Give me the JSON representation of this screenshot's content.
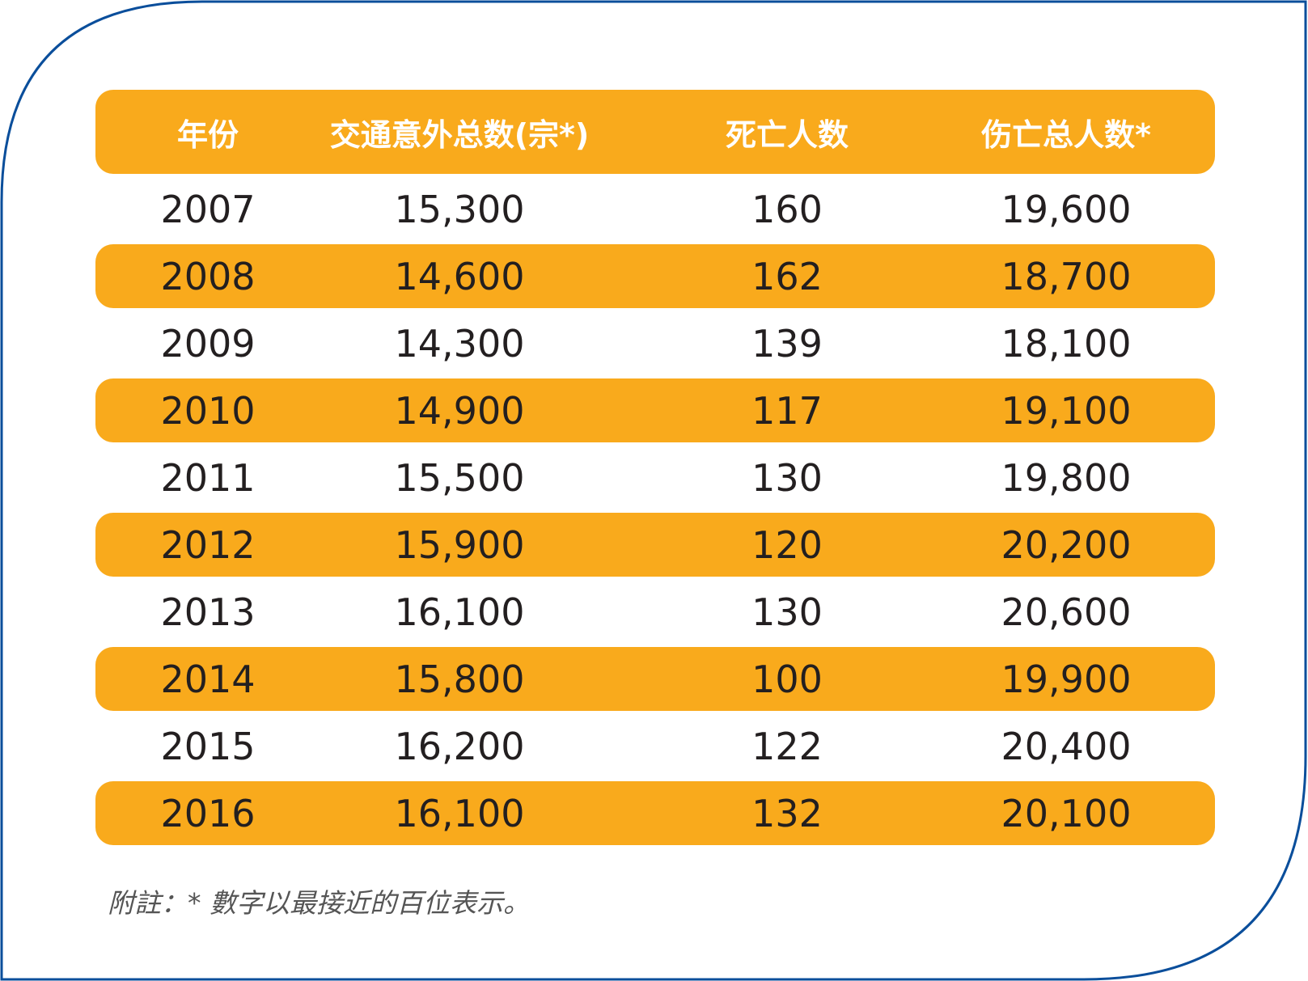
{
  "colors": {
    "frame_border": "#0A4E9B",
    "header_bg": "#F9AA1C",
    "stripe_bg": "#F9AA1C",
    "header_text": "#FFFFFF",
    "body_text": "#231F20",
    "note_text": "#555555"
  },
  "chart_data": {
    "type": "table",
    "columns": [
      "年份",
      "交通意外总数(宗*)",
      "死亡人数",
      "伤亡总人数*"
    ],
    "rows": [
      [
        "2007",
        "15,300",
        "160",
        "19,600"
      ],
      [
        "2008",
        "14,600",
        "162",
        "18,700"
      ],
      [
        "2009",
        "14,300",
        "139",
        "18,100"
      ],
      [
        "2010",
        "14,900",
        "117",
        "19,100"
      ],
      [
        "2011",
        "15,500",
        "130",
        "19,800"
      ],
      [
        "2012",
        "15,900",
        "120",
        "20,200"
      ],
      [
        "2013",
        "16,100",
        "130",
        "20,600"
      ],
      [
        "2014",
        "15,800",
        "100",
        "19,900"
      ],
      [
        "2015",
        "16,200",
        "122",
        "20,400"
      ],
      [
        "2016",
        "16,100",
        "132",
        "20,100"
      ]
    ],
    "note": "附註：* 數字以最接近的百位表示。"
  }
}
